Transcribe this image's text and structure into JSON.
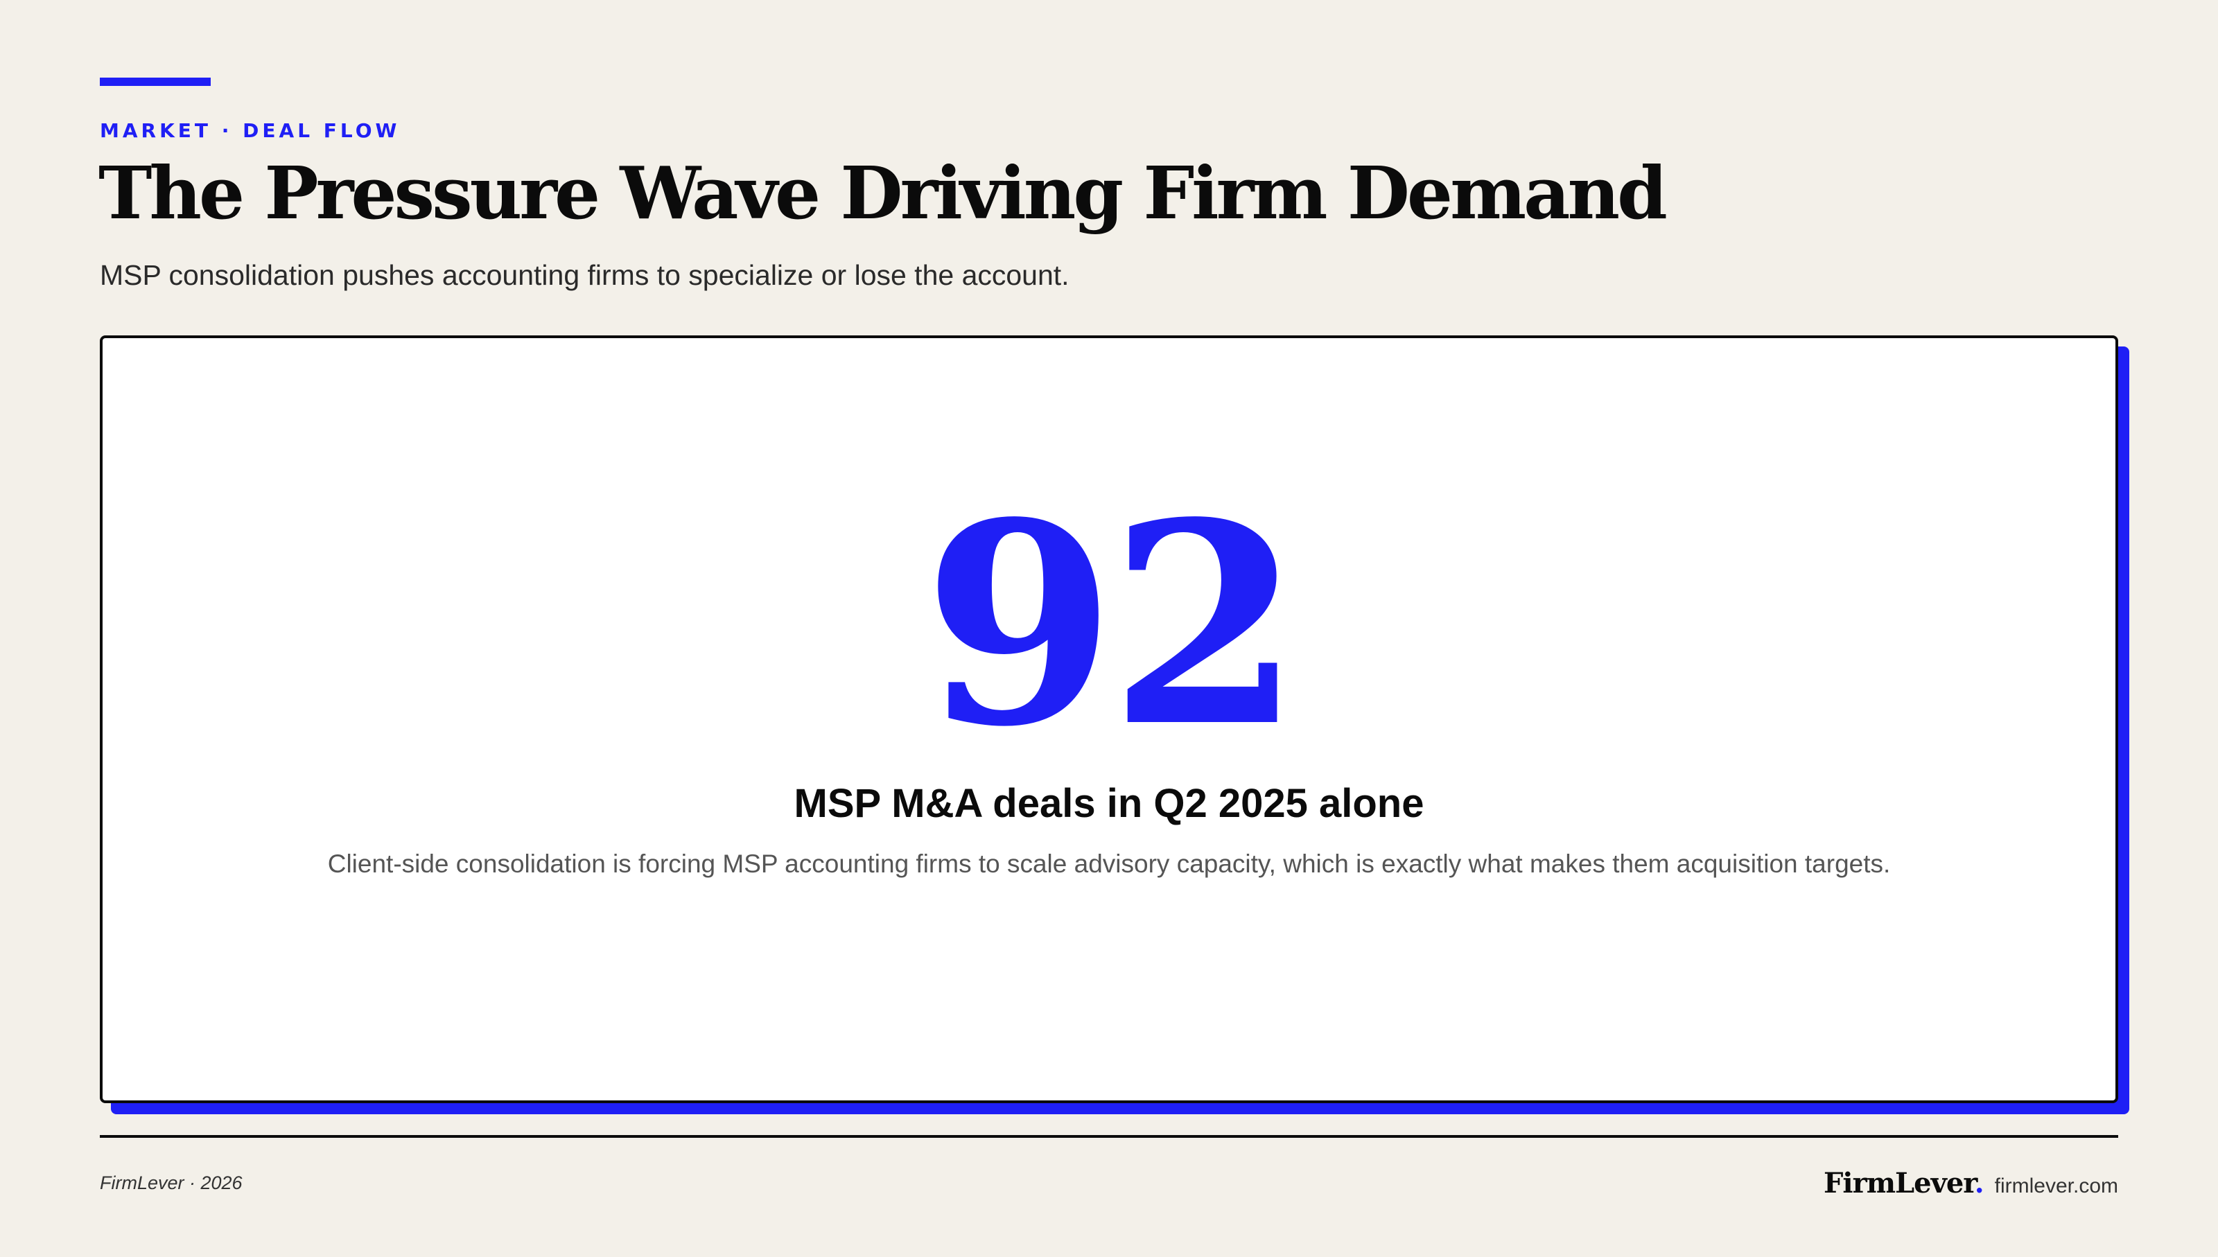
{
  "header": {
    "eyebrow": "MARKET · DEAL FLOW",
    "title": "The Pressure Wave Driving Firm Demand",
    "subtitle": "MSP consolidation pushes accounting firms to specialize or lose the account."
  },
  "stat": {
    "value": "92",
    "label": "MSP M&A deals in Q2 2025 alone",
    "description": "Client-side consolidation is forcing MSP accounting firms to scale advisory capacity, which is exactly what makes them acquisition targets."
  },
  "footer": {
    "left": "FirmLever · 2026",
    "brand": "FirmLever",
    "brand_dot": ".",
    "site": "firmlever.com"
  },
  "colors": {
    "accent": "#1f1ff5",
    "background": "#f3f0e9",
    "ink": "#0b0b0b"
  }
}
